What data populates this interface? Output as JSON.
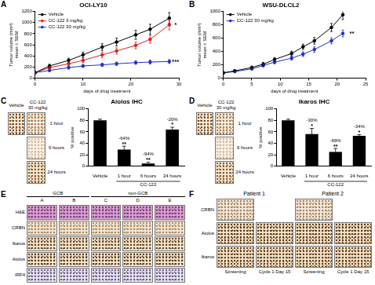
{
  "chart_data": [
    {
      "panel": "A",
      "type": "line",
      "title": "OCI-LY10",
      "x_label": "days of drug treatment",
      "y_label": [
        "Tumor volume (mm³)",
        "mean ± SEM"
      ],
      "x": [
        0,
        3,
        7,
        10,
        14,
        17,
        21,
        24,
        28
      ],
      "xlim": [
        0,
        30
      ],
      "xticks": [
        0,
        10,
        20,
        30
      ],
      "ylim": [
        0,
        1200
      ],
      "yticks": [
        0,
        200,
        400,
        600,
        800,
        1000,
        1200
      ],
      "grid": false,
      "legend": "upper left",
      "marker": "circle",
      "series": [
        {
          "name": "Vehicle",
          "color": "#000000",
          "values": [
            100,
            220,
            320,
            420,
            560,
            650,
            780,
            880,
            1080
          ],
          "errors": [
            10,
            30,
            40,
            50,
            60,
            70,
            80,
            90,
            100
          ]
        },
        {
          "name": "CC-122 3 mg/kg",
          "color": "#e02020",
          "values": [
            100,
            190,
            260,
            320,
            420,
            490,
            590,
            700,
            960
          ],
          "errors": [
            10,
            25,
            30,
            40,
            50,
            55,
            60,
            70,
            90
          ]
        },
        {
          "name": "CC-122 30 mg/kg",
          "color": "#2230c8",
          "values": [
            100,
            140,
            190,
            220,
            240,
            260,
            280,
            290,
            300
          ],
          "errors": [
            10,
            20,
            25,
            25,
            30,
            30,
            30,
            35,
            35
          ]
        }
      ],
      "annotations": [
        {
          "text": "*",
          "x": 29.3,
          "y": 960
        },
        {
          "text": "***",
          "x": 29.3,
          "y": 300
        }
      ]
    },
    {
      "panel": "B",
      "type": "line",
      "title": "WSU-DLCL2",
      "x_label": "days of drug treatment",
      "y_label": [
        "Tumor volume (mm³)",
        "mean ± SEM"
      ],
      "x": [
        0,
        2,
        5,
        7,
        9,
        12,
        14,
        16,
        19,
        21
      ],
      "xlim": [
        0,
        25
      ],
      "xticks": [
        0,
        5,
        10,
        15,
        20,
        25
      ],
      "ylim": [
        0,
        1000
      ],
      "yticks": [
        0,
        200,
        400,
        600,
        800,
        1000
      ],
      "grid": false,
      "legend": "upper left",
      "marker": "circle",
      "series": [
        {
          "name": "Vehicle",
          "color": "#000000",
          "values": [
            80,
            110,
            160,
            210,
            280,
            370,
            470,
            560,
            760,
            950
          ],
          "errors": [
            10,
            15,
            20,
            25,
            30,
            35,
            40,
            50,
            60,
            70
          ]
        },
        {
          "name": "CC-122 30 mg/kg",
          "color": "#2230c8",
          "values": [
            80,
            100,
            140,
            190,
            240,
            300,
            360,
            430,
            560,
            670
          ],
          "errors": [
            10,
            12,
            15,
            20,
            25,
            30,
            35,
            40,
            45,
            50
          ]
        }
      ],
      "annotations": [
        {
          "text": "**",
          "x": 22.6,
          "y": 670
        }
      ]
    },
    {
      "type": "bar",
      "title": "Aiolos IHC",
      "y_label": "% positive",
      "categories": [
        "Vehicle",
        "1 hour",
        "6 hours",
        "24 hours"
      ],
      "values": [
        80,
        29,
        5,
        64
      ],
      "errors": [
        2,
        6,
        2,
        4
      ],
      "color": "#000000",
      "ylim": [
        0,
        100
      ],
      "yticks": [
        0,
        20,
        40,
        60,
        80,
        100
      ],
      "grid": false,
      "annotations": [
        {
          "category": "1 hour",
          "text": "-64%",
          "significance": "**"
        },
        {
          "category": "6 hours",
          "text": "-94%",
          "significance": "**"
        },
        {
          "category": "24 hours",
          "text": "-20%",
          "significance": "*"
        }
      ],
      "group_label": {
        "text": "CC-122",
        "categories": [
          "1 hour",
          "6 hours",
          "24 hours"
        ]
      }
    },
    {
      "type": "bar",
      "title": "Ikaros IHC",
      "y_label": "% positive",
      "categories": [
        "Vehicle",
        "1 hour",
        "6 hours",
        "24 hours"
      ],
      "values": [
        80,
        56,
        25,
        53
      ],
      "errors": [
        2,
        10,
        6,
        2
      ],
      "color": "#000000",
      "ylim": [
        0,
        100
      ],
      "yticks": [
        0,
        20,
        40,
        60,
        80,
        100
      ],
      "grid": false,
      "annotations": [
        {
          "category": "1 hour",
          "text": "-30%",
          "significance": "*"
        },
        {
          "category": "6 hours",
          "text": "-69%",
          "significance": "**"
        },
        {
          "category": "24 hours",
          "text": "-34%",
          "significance": "*"
        }
      ],
      "group_label": {
        "text": "CC-122",
        "categories": [
          "1 hour",
          "6 hours",
          "24 hours"
        ]
      }
    }
  ],
  "images": {
    "C": {
      "panel": "C",
      "stain": "Aiolos",
      "columns": [
        "Vehicle",
        "CC-122 30 mg/kg"
      ],
      "rows": [
        "1 hour",
        "6 hours",
        "24 hours"
      ]
    },
    "D": {
      "panel": "D",
      "stain": "Ikaros",
      "columns": [
        "Vehicle",
        "CC-122 30 mg/kg"
      ],
      "rows": [
        "1 hour",
        "6 hours",
        "24 hours"
      ]
    },
    "E": {
      "panel": "E",
      "groups": [
        {
          "name": "GCB",
          "columns": [
            "A",
            "B"
          ]
        },
        {
          "name": "non-GCB",
          "columns": [
            "C",
            "D",
            "E"
          ]
        }
      ],
      "rows": [
        "H&E",
        "CRBN",
        "Ikaros",
        "Aiolos",
        "IRF4"
      ]
    },
    "F": {
      "panel": "F",
      "patients": [
        "Patient 1",
        "Patient 2"
      ],
      "columns": [
        "Screening",
        "Cycle 1 Day 15"
      ],
      "rows": [
        {
          "label": "CRBN",
          "tiles": 1
        },
        {
          "label": "Aiolos",
          "tiles": 2
        },
        {
          "label": "Ikaros",
          "tiles": 2
        }
      ]
    }
  }
}
